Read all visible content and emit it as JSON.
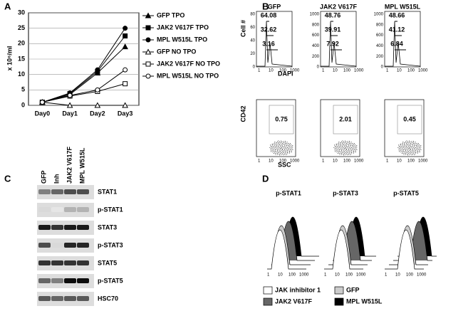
{
  "chart_data": [
    {
      "type": "line",
      "panel": "A",
      "ylabel": "x 10⁶/ml",
      "categories": [
        "Day0",
        "Day1",
        "Day2",
        "Day3"
      ],
      "series": [
        {
          "name": "GFP TPO",
          "marker": "triangle",
          "filled": true,
          "values": [
            1,
            3.5,
            10.5,
            19
          ]
        },
        {
          "name": "JAK2 V617F TPO",
          "marker": "square",
          "filled": true,
          "values": [
            1,
            3.8,
            11,
            22.5
          ]
        },
        {
          "name": "MPL W515L TPO",
          "marker": "circle",
          "filled": true,
          "values": [
            1,
            4,
            11.5,
            25
          ]
        },
        {
          "name": "GFP NO TPO",
          "marker": "triangle",
          "filled": false,
          "values": [
            1,
            0,
            0,
            0
          ]
        },
        {
          "name": "JAK2 V617F NO TPO",
          "marker": "square",
          "filled": false,
          "values": [
            1,
            3,
            4.5,
            7
          ]
        },
        {
          "name": "MPL W515L NO TPO",
          "marker": "circle",
          "filled": false,
          "values": [
            1,
            3.2,
            5,
            11.5
          ]
        }
      ],
      "ylim": [
        0,
        30
      ],
      "yticks": [
        0,
        5,
        10,
        15,
        20,
        25,
        30
      ],
      "grid": true
    }
  ],
  "panel_b": {
    "label": "B",
    "columns": [
      "GFP",
      "JAK2 V617F",
      "MPL W515L"
    ],
    "hist_ylabel": "Cell #",
    "hist_xlabel": "DAPI",
    "dot_ylabel": "CD42",
    "dot_xlabel": "SSC",
    "hist_yticks": [
      [
        0,
        20,
        40,
        60,
        80
      ],
      [
        0,
        200,
        400,
        600,
        800,
        1000
      ],
      [
        0,
        200,
        400,
        600,
        800,
        1000
      ]
    ],
    "xticks": [
      1,
      10,
      100,
      1000
    ],
    "hist_values": [
      [
        64.08,
        32.62,
        3.16
      ],
      [
        48.76,
        39.91,
        7.92
      ],
      [
        48.66,
        41.12,
        6.84
      ]
    ],
    "gate_values": [
      0.75,
      2.01,
      0.45
    ]
  },
  "panel_c": {
    "label": "C",
    "lanes": [
      "GFP",
      "Inh",
      "JAK2 V617F",
      "MPL W515L"
    ],
    "rows": [
      "STAT1",
      "p-STAT1",
      "STAT3",
      "p-STAT3",
      "STAT5",
      "p-STAT5",
      "HSC70"
    ]
  },
  "panel_d": {
    "label": "D",
    "titles": [
      "p-STAT1",
      "p-STAT3",
      "p-STAT5"
    ],
    "xticks": [
      1,
      10,
      100,
      1000
    ],
    "legend": [
      {
        "name": "JAK inhibitor 1",
        "color": "#ffffff"
      },
      {
        "name": "GFP",
        "color": "#cccccc"
      },
      {
        "name": "JAK2 V617F",
        "color": "#666666"
      },
      {
        "name": "MPL W515L",
        "color": "#000000"
      }
    ]
  }
}
